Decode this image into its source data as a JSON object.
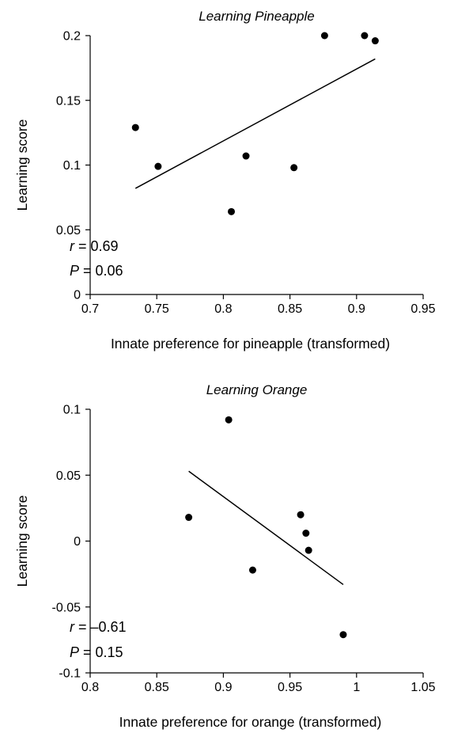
{
  "chart_data": [
    {
      "type": "scatter",
      "title": "Learning Pineapple",
      "xlabel": "Innate preference for pineapple (transformed)",
      "ylabel": "Learning score",
      "xlim": [
        0.7,
        0.95
      ],
      "ylim": [
        0,
        0.2
      ],
      "x_ticks": [
        "0.7",
        "0.75",
        "0.8",
        "0.85",
        "0.9",
        "0.95"
      ],
      "y_ticks": [
        "0",
        "0.05",
        "0.1",
        "0.15",
        "0.2"
      ],
      "points": [
        {
          "x": 0.734,
          "y": 0.129
        },
        {
          "x": 0.751,
          "y": 0.099
        },
        {
          "x": 0.806,
          "y": 0.064
        },
        {
          "x": 0.817,
          "y": 0.107
        },
        {
          "x": 0.853,
          "y": 0.098
        },
        {
          "x": 0.876,
          "y": 0.2
        },
        {
          "x": 0.906,
          "y": 0.2
        },
        {
          "x": 0.914,
          "y": 0.196
        }
      ],
      "trendline": {
        "x": [
          0.734,
          0.914
        ],
        "y": [
          0.082,
          0.182
        ]
      },
      "stats": {
        "r_symbol": "r",
        "r_text": " = 0.69",
        "p_symbol": "P",
        "p_text": "= 0.06"
      }
    },
    {
      "type": "scatter",
      "title": "Learning Orange",
      "xlabel": "Innate preference for orange (transformed)",
      "ylabel": "Learning score",
      "xlim": [
        0.8,
        1.05
      ],
      "ylim": [
        -0.1,
        0.1
      ],
      "x_ticks": [
        "0.8",
        "0.85",
        "0.9",
        "0.95",
        "1",
        "1.05"
      ],
      "y_ticks": [
        "-0.1",
        "-0.05",
        "0",
        "0.05",
        "0.1"
      ],
      "points": [
        {
          "x": 0.874,
          "y": 0.018
        },
        {
          "x": 0.904,
          "y": 0.092
        },
        {
          "x": 0.922,
          "y": -0.022
        },
        {
          "x": 0.958,
          "y": 0.02
        },
        {
          "x": 0.962,
          "y": 0.006
        },
        {
          "x": 0.964,
          "y": -0.007
        },
        {
          "x": 0.99,
          "y": -0.071
        }
      ],
      "trendline": {
        "x": [
          0.874,
          0.99
        ],
        "y": [
          0.053,
          -0.033
        ]
      },
      "stats": {
        "r_symbol": "r",
        "r_text": " = –0.61",
        "p_symbol": "P",
        "p_text": "= 0.15"
      }
    }
  ]
}
